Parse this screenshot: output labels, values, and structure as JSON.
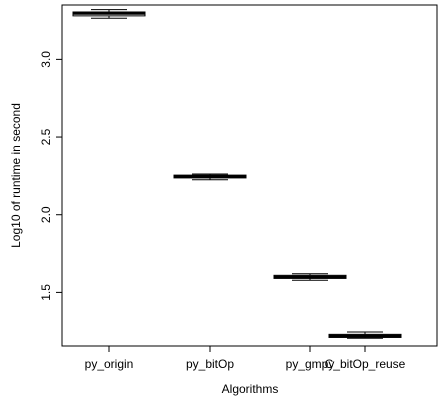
{
  "chart_data": {
    "type": "boxplot",
    "title": "",
    "xlabel": "Algorithms",
    "ylabel": "Log10 of runtime in second",
    "categories": [
      "py_origin",
      "py_bitOp",
      "py_gmpy",
      "C_bitOp_reuse"
    ],
    "boxes": [
      {
        "name": "py_origin",
        "whisker_low": 3.265,
        "q1": 3.28,
        "median": 3.295,
        "q3": 3.305,
        "whisker_high": 3.32
      },
      {
        "name": "py_bitOp",
        "whisker_low": 2.225,
        "q1": 2.237,
        "median": 2.248,
        "q3": 2.255,
        "whisker_high": 2.262
      },
      {
        "name": "py_gmpy",
        "whisker_low": 1.578,
        "q1": 1.59,
        "median": 1.6,
        "q3": 1.61,
        "whisker_high": 1.62
      },
      {
        "name": "C_bitOp_reuse",
        "whisker_low": 1.205,
        "q1": 1.21,
        "median": 1.22,
        "q3": 1.23,
        "whisker_high": 1.245
      }
    ],
    "yticks": [
      1.5,
      2.0,
      2.5,
      3.0
    ],
    "ytick_labels": [
      "1.5",
      "2.0",
      "2.5",
      "3.0"
    ],
    "ylim": [
      1.155,
      3.35
    ],
    "grid": false,
    "legend": "none"
  }
}
